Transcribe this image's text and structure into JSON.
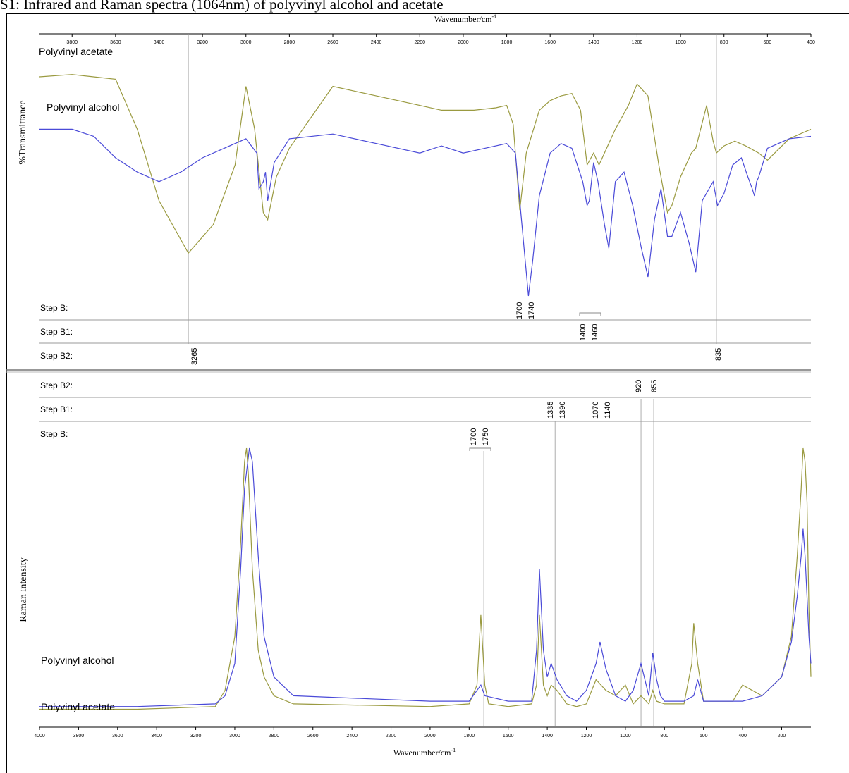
{
  "figure_title": "S1: Infrared and Raman spectra (1064nm) of polyvinyl alcohol and acetate",
  "colors": {
    "polyvinyl_alcohol": "#4a4ad8",
    "polyvinyl_acetate": "#9a9a40",
    "guide": "#9a9a9a",
    "axis": "#000000"
  },
  "chart_data": [
    {
      "type": "line",
      "panel": "infrared",
      "xlabel": "Wavenumber/cm-1",
      "ylabel": "%Transmittance",
      "xlim": [
        3950,
        400
      ],
      "x_reversed": true,
      "tick_labels": [
        "3800",
        "3600",
        "3400",
        "3200",
        "3000",
        "2800",
        "2600",
        "2400",
        "2200",
        "2000",
        "1800",
        "1600",
        "1400",
        "1200",
        "1000",
        "800",
        "600",
        "400"
      ],
      "series": [
        {
          "name": "Polyvinyl acetate",
          "x": [
            3950,
            3800,
            3600,
            3500,
            3400,
            3265,
            3150,
            3050,
            3000,
            2960,
            2920,
            2900,
            2860,
            2800,
            2700,
            2600,
            2400,
            2200,
            2100,
            1950,
            1850,
            1800,
            1770,
            1740,
            1710,
            1650,
            1600,
            1550,
            1500,
            1460,
            1430,
            1400,
            1375,
            1340,
            1300,
            1240,
            1200,
            1150,
            1100,
            1060,
            1040,
            1000,
            950,
            930,
            880,
            850,
            835,
            800,
            750,
            700,
            640,
            600,
            500,
            400
          ],
          "y": [
            92,
            93,
            91,
            70,
            40,
            18,
            30,
            55,
            88,
            70,
            35,
            32,
            50,
            62,
            75,
            88,
            84,
            80,
            78,
            78,
            79,
            80,
            72,
            36,
            60,
            78,
            82,
            84,
            85,
            78,
            55,
            60,
            55,
            62,
            70,
            80,
            89,
            84,
            55,
            35,
            38,
            50,
            60,
            62,
            80,
            65,
            60,
            63,
            65,
            63,
            60,
            57,
            66,
            70
          ]
        },
        {
          "name": "Polyvinyl alcohol",
          "x": [
            3950,
            3800,
            3700,
            3600,
            3500,
            3400,
            3300,
            3200,
            3100,
            3000,
            2950,
            2940,
            2920,
            2910,
            2900,
            2870,
            2800,
            2600,
            2400,
            2200,
            2100,
            2000,
            1900,
            1800,
            1760,
            1720,
            1700,
            1680,
            1650,
            1600,
            1550,
            1500,
            1450,
            1430,
            1420,
            1400,
            1380,
            1350,
            1330,
            1300,
            1260,
            1220,
            1180,
            1150,
            1120,
            1090,
            1060,
            1040,
            1000,
            960,
            930,
            900,
            850,
            830,
            800,
            760,
            720,
            690,
            670,
            660,
            650,
            640,
            600,
            500,
            400
          ],
          "y": [
            70,
            70,
            67,
            58,
            52,
            48,
            52,
            58,
            62,
            66,
            60,
            45,
            48,
            52,
            40,
            56,
            66,
            68,
            64,
            60,
            63,
            60,
            62,
            64,
            60,
            20,
            0,
            15,
            42,
            60,
            64,
            62,
            48,
            38,
            40,
            56,
            48,
            30,
            20,
            48,
            52,
            38,
            20,
            8,
            32,
            45,
            25,
            25,
            35,
            22,
            10,
            40,
            48,
            38,
            43,
            55,
            58,
            50,
            45,
            42,
            48,
            50,
            62,
            66,
            67
          ]
        }
      ]
    },
    {
      "type": "line",
      "panel": "raman",
      "xlabel": "Wavenumber/cm-1",
      "ylabel": "Raman intensity",
      "xlim": [
        4000,
        50
      ],
      "x_reversed": true,
      "tick_labels": [
        "4000",
        "3800",
        "3600",
        "3400",
        "3200",
        "3000",
        "2800",
        "2600",
        "2400",
        "2200",
        "2000",
        "1800",
        "1600",
        "1400",
        "1200",
        "1000",
        "800",
        "600",
        "400",
        "200"
      ],
      "series": [
        {
          "name": "Polyvinyl alcohol",
          "x": [
            4000,
            3500,
            3100,
            3050,
            3000,
            2970,
            2950,
            2925,
            2910,
            2880,
            2850,
            2800,
            2700,
            2000,
            1800,
            1760,
            1740,
            1720,
            1600,
            1480,
            1455,
            1440,
            1420,
            1400,
            1380,
            1350,
            1300,
            1250,
            1200,
            1150,
            1130,
            1100,
            1050,
            1000,
            960,
            920,
            880,
            860,
            840,
            820,
            800,
            700,
            650,
            630,
            600,
            400,
            300,
            200,
            150,
            120,
            100,
            90,
            80,
            60,
            50
          ],
          "y": [
            4,
            4,
            5,
            8,
            20,
            55,
            85,
            100,
            95,
            60,
            30,
            15,
            8,
            6,
            6,
            10,
            12,
            8,
            6,
            6,
            25,
            55,
            25,
            15,
            20,
            14,
            8,
            6,
            10,
            20,
            28,
            18,
            8,
            6,
            10,
            20,
            8,
            24,
            14,
            8,
            6,
            6,
            8,
            14,
            6,
            6,
            8,
            15,
            28,
            45,
            60,
            70,
            60,
            30,
            20
          ]
        },
        {
          "name": "Polyvinyl acetate",
          "x": [
            4000,
            3500,
            3100,
            3050,
            3000,
            2970,
            2950,
            2940,
            2930,
            2910,
            2880,
            2850,
            2800,
            2700,
            2000,
            1800,
            1760,
            1740,
            1720,
            1700,
            1600,
            1480,
            1455,
            1440,
            1420,
            1400,
            1380,
            1350,
            1300,
            1250,
            1200,
            1150,
            1100,
            1050,
            1000,
            960,
            920,
            880,
            860,
            840,
            800,
            700,
            660,
            650,
            630,
            600,
            450,
            400,
            300,
            200,
            150,
            120,
            100,
            90,
            80,
            70,
            60,
            50
          ],
          "y": [
            3,
            3,
            4,
            10,
            30,
            65,
            95,
            100,
            90,
            55,
            25,
            15,
            8,
            5,
            4,
            5,
            12,
            38,
            12,
            5,
            4,
            5,
            12,
            38,
            12,
            8,
            12,
            10,
            5,
            4,
            5,
            14,
            10,
            8,
            12,
            5,
            8,
            5,
            10,
            6,
            5,
            5,
            20,
            35,
            20,
            6,
            6,
            12,
            8,
            15,
            30,
            60,
            85,
            100,
            95,
            80,
            40,
            15
          ]
        }
      ]
    }
  ],
  "ir_labels": {
    "acetate": "Polyvinyl acetate",
    "alcohol": "Polyvinyl alcohol"
  },
  "raman_labels": {
    "alcohol": "Polyvinyl alcohol",
    "acetate": "Polyvinyl acetate"
  },
  "ir_steps": [
    "Step B:",
    "Step B1:",
    "Step B2:"
  ],
  "raman_steps": [
    "Step B2:",
    "Step B1:",
    "Step B:"
  ],
  "ir_annotations": [
    {
      "text": "1700",
      "x": 1720
    },
    {
      "text": "1740",
      "x": 1720
    },
    {
      "text": "1400",
      "x": 1430
    },
    {
      "text": "1460",
      "x": 1430
    },
    {
      "text": "3265",
      "x": 3265
    },
    {
      "text": "835",
      "x": 835
    }
  ],
  "raman_annotations": [
    {
      "text": "920",
      "x": 920
    },
    {
      "text": "855",
      "x": 855
    },
    {
      "text": "1335",
      "x": 1360
    },
    {
      "text": "1390",
      "x": 1360
    },
    {
      "text": "1070",
      "x": 1110
    },
    {
      "text": "1140",
      "x": 1110
    },
    {
      "text": "1700",
      "x": 1725
    },
    {
      "text": "1750",
      "x": 1725
    }
  ],
  "xlabel_top_text": "Wavenumber/cm",
  "xlabel_bottom_text": "Wavenumber/cm",
  "xlabel_sup": "-1",
  "ylabel_top": "%Transmittance",
  "ylabel_bottom": "Raman intensity"
}
